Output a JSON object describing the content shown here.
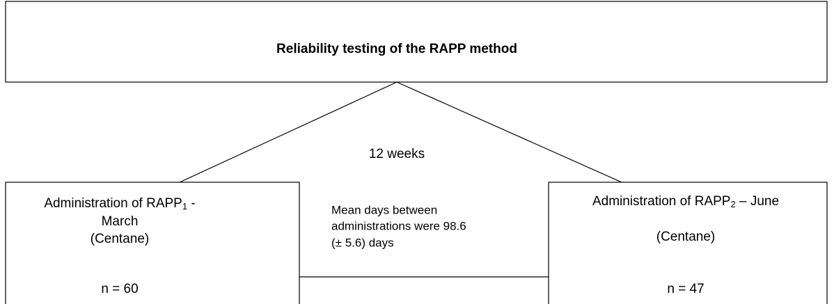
{
  "title": "Reliability testing of the RAPP method",
  "interval": "12 weeks",
  "left": {
    "prefix": "Administration of RAPP",
    "subscript": "1",
    "suffix": " -",
    "lines": [
      "March",
      "(Centane)"
    ],
    "n": "n = 60"
  },
  "middle": {
    "lines": [
      "Mean days between",
      "administrations were 98.6",
      "(± 5.6) days"
    ]
  },
  "right": {
    "prefix": "Administration of RAPP",
    "subscript": "2",
    "suffix": " – June",
    "lines": [
      "(Centane)"
    ],
    "n": "n = 47"
  }
}
